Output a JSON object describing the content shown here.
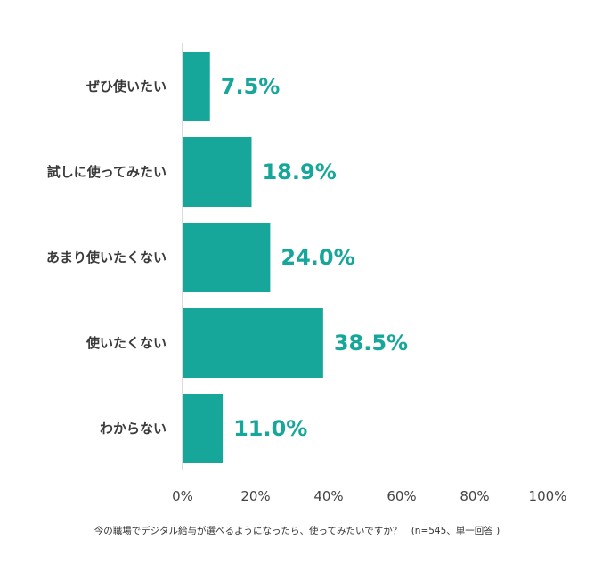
{
  "chart_data": {
    "type": "bar",
    "orientation": "horizontal",
    "categories": [
      "ぜひ使いたい",
      "試しに使ってみたい",
      "あまり使いたくない",
      "使いたくない",
      "わからない"
    ],
    "values": [
      7.5,
      18.9,
      24.0,
      38.5,
      11.0
    ],
    "value_labels": [
      "7.5%",
      "18.9%",
      "24.0%",
      "38.5%",
      "11.0%"
    ],
    "xlim": [
      0,
      100
    ],
    "x_ticks": [
      0,
      20,
      40,
      60,
      80,
      100
    ],
    "x_tick_labels": [
      "0%",
      "20%",
      "40%",
      "60%",
      "80%",
      "100%"
    ],
    "grid": false,
    "bar_color": "#17a79a",
    "label_color": "#17a79a",
    "title": "",
    "xlabel": "",
    "ylabel": ""
  },
  "footnote": "今の職場でデジタル給与が選べるようになったら、使ってみたいですか？　(n=545、単一回答 )"
}
